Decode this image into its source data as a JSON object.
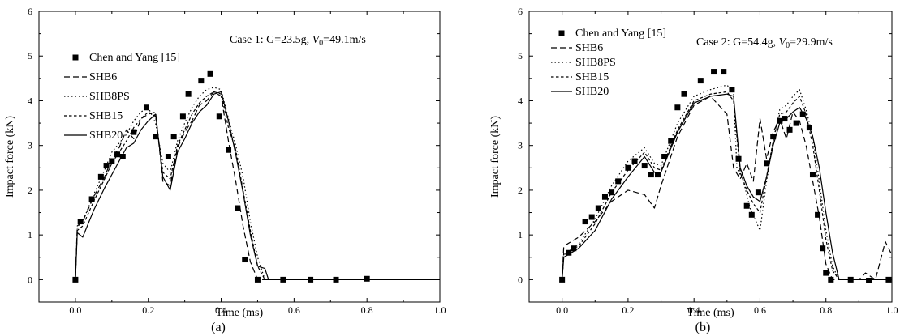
{
  "chart_data": [
    {
      "type": "line",
      "panel_label": "(a)",
      "case_label": {
        "prefix": "Case 1:  G=23.5g, ",
        "v_symbol": "V",
        "v_subscript": "0",
        "v_value": "=49.1m/s"
      },
      "xlabel": "Time (ms)",
      "ylabel": "Impact force (kN)",
      "xlim": [
        -0.1,
        1.0
      ],
      "ylim": [
        -0.5,
        6
      ],
      "xticks": [
        0.0,
        0.2,
        0.4,
        0.6,
        0.8,
        1.0
      ],
      "xtick_labels": [
        "0.0",
        "0.2",
        "0.4",
        "0.6",
        "0.8",
        "1.0"
      ],
      "yticks": [
        0,
        1,
        2,
        3,
        4,
        5,
        6
      ],
      "ytick_labels": [
        "0",
        "1",
        "2",
        "3",
        "4",
        "5",
        "6"
      ],
      "grid": false,
      "legend_position": "right",
      "series": [
        {
          "name": "Chen and Yang [15]",
          "style": "square-marker",
          "x": [
            0.0,
            0.014,
            0.045,
            0.07,
            0.085,
            0.1,
            0.115,
            0.13,
            0.16,
            0.195,
            0.22,
            0.255,
            0.27,
            0.295,
            0.31,
            0.345,
            0.37,
            0.395,
            0.42,
            0.445,
            0.465,
            0.5,
            0.57,
            0.645,
            0.715,
            0.8
          ],
          "y": [
            0.0,
            1.3,
            1.8,
            2.3,
            2.55,
            2.65,
            2.8,
            2.75,
            3.3,
            3.85,
            3.2,
            2.75,
            3.2,
            3.65,
            4.15,
            4.45,
            4.6,
            3.65,
            2.9,
            1.6,
            0.45,
            0.0,
            0.0,
            0.0,
            0.0,
            0.02
          ]
        },
        {
          "name": "SHB6",
          "style": "dash",
          "x": [
            0.0,
            0.005,
            0.02,
            0.05,
            0.08,
            0.1,
            0.12,
            0.14,
            0.16,
            0.18,
            0.2,
            0.22,
            0.24,
            0.26,
            0.28,
            0.3,
            0.32,
            0.34,
            0.36,
            0.38,
            0.4,
            0.42,
            0.44,
            0.46,
            0.48,
            0.5,
            0.55,
            1.0
          ],
          "y": [
            0.0,
            1.2,
            1.3,
            1.85,
            2.3,
            2.7,
            2.95,
            3.35,
            3.15,
            3.6,
            3.7,
            3.75,
            2.2,
            2.1,
            2.95,
            3.3,
            3.55,
            3.9,
            4.0,
            4.2,
            4.1,
            3.1,
            2.2,
            1.2,
            0.4,
            0.0,
            0.0,
            0.0
          ]
        },
        {
          "name": "SHB8PS",
          "style": "dot",
          "x": [
            0.0,
            0.005,
            0.02,
            0.05,
            0.08,
            0.1,
            0.12,
            0.14,
            0.16,
            0.18,
            0.2,
            0.22,
            0.24,
            0.26,
            0.28,
            0.3,
            0.32,
            0.34,
            0.36,
            0.38,
            0.4,
            0.42,
            0.44,
            0.46,
            0.48,
            0.5,
            0.52,
            0.55,
            1.0
          ],
          "y": [
            0.0,
            1.15,
            1.3,
            1.9,
            2.45,
            2.85,
            3.05,
            3.25,
            3.55,
            3.75,
            3.85,
            3.5,
            2.6,
            2.4,
            3.1,
            3.5,
            3.85,
            4.1,
            4.25,
            4.3,
            4.25,
            3.6,
            3.0,
            2.3,
            1.3,
            0.5,
            0.0,
            0.0,
            0.0
          ]
        },
        {
          "name": "SHB15",
          "style": "short-dash",
          "x": [
            0.0,
            0.005,
            0.02,
            0.05,
            0.08,
            0.1,
            0.12,
            0.14,
            0.16,
            0.18,
            0.2,
            0.22,
            0.24,
            0.26,
            0.28,
            0.3,
            0.32,
            0.34,
            0.36,
            0.38,
            0.4,
            0.42,
            0.44,
            0.46,
            0.48,
            0.5,
            0.52,
            0.55,
            1.0
          ],
          "y": [
            0.0,
            1.1,
            1.2,
            1.75,
            2.25,
            2.6,
            2.85,
            3.1,
            3.4,
            3.6,
            3.75,
            3.65,
            2.4,
            2.25,
            3.0,
            3.35,
            3.7,
            3.95,
            4.1,
            4.2,
            4.15,
            3.4,
            2.9,
            2.0,
            1.1,
            0.3,
            0.0,
            0.0,
            0.0
          ]
        },
        {
          "name": "SHB20",
          "style": "solid",
          "x": [
            0.0,
            0.005,
            0.02,
            0.05,
            0.08,
            0.1,
            0.12,
            0.14,
            0.16,
            0.18,
            0.2,
            0.22,
            0.24,
            0.26,
            0.28,
            0.3,
            0.32,
            0.34,
            0.36,
            0.38,
            0.4,
            0.42,
            0.44,
            0.46,
            0.48,
            0.5,
            0.52,
            0.53,
            1.0
          ],
          "y": [
            0.0,
            1.05,
            0.95,
            1.55,
            2.05,
            2.35,
            2.65,
            2.95,
            3.05,
            3.35,
            3.55,
            3.7,
            2.3,
            2.0,
            2.85,
            3.15,
            3.5,
            3.75,
            3.9,
            4.15,
            4.2,
            3.55,
            2.8,
            1.95,
            1.0,
            0.3,
            0.25,
            0.0,
            0.0
          ]
        }
      ]
    },
    {
      "type": "line",
      "panel_label": "(b)",
      "case_label": {
        "prefix": "Case 2:  G=54.4g, ",
        "v_symbol": "V",
        "v_subscript": "0",
        "v_value": "=29.9m/s"
      },
      "xlabel": "Time (ms)",
      "ylabel": "Impact force (kN)",
      "xlim": [
        -0.1,
        1.0
      ],
      "ylim": [
        -0.5,
        6
      ],
      "xticks": [
        0.0,
        0.2,
        0.4,
        0.6,
        0.8,
        1.0
      ],
      "xtick_labels": [
        "0.0",
        "0.2",
        "0.4",
        "0.6",
        "0.8",
        "1.0"
      ],
      "yticks": [
        0,
        1,
        2,
        3,
        4,
        5,
        6
      ],
      "ytick_labels": [
        "0",
        "1",
        "2",
        "3",
        "4",
        "5",
        "6"
      ],
      "grid": false,
      "legend_position": "top-left",
      "series": [
        {
          "name": "Chen and Yang [15]",
          "style": "square-marker",
          "x": [
            0.0,
            0.02,
            0.035,
            0.07,
            0.09,
            0.11,
            0.13,
            0.15,
            0.17,
            0.2,
            0.22,
            0.25,
            0.27,
            0.29,
            0.31,
            0.33,
            0.35,
            0.37,
            0.42,
            0.46,
            0.49,
            0.515,
            0.535,
            0.56,
            0.575,
            0.595,
            0.62,
            0.64,
            0.66,
            0.675,
            0.69,
            0.71,
            0.73,
            0.75,
            0.76,
            0.775,
            0.79,
            0.8,
            0.815,
            0.875,
            0.93,
            0.99
          ],
          "y": [
            0.0,
            0.6,
            0.7,
            1.3,
            1.4,
            1.6,
            1.85,
            1.95,
            2.2,
            2.5,
            2.65,
            2.55,
            2.35,
            2.35,
            2.75,
            3.1,
            3.85,
            4.15,
            4.45,
            4.65,
            4.65,
            4.25,
            2.7,
            1.65,
            1.45,
            1.95,
            2.6,
            3.2,
            3.55,
            3.6,
            3.35,
            3.5,
            3.7,
            3.4,
            2.35,
            1.45,
            0.7,
            0.15,
            0.0,
            0.0,
            -0.02,
            0.0
          ]
        },
        {
          "name": "SHB6",
          "style": "dash",
          "x": [
            0.0,
            0.005,
            0.05,
            0.1,
            0.15,
            0.2,
            0.25,
            0.28,
            0.3,
            0.35,
            0.4,
            0.45,
            0.5,
            0.52,
            0.54,
            0.56,
            0.58,
            0.6,
            0.62,
            0.64,
            0.66,
            0.68,
            0.7,
            0.72,
            0.74,
            0.76,
            0.78,
            0.8,
            0.82,
            0.84,
            0.88,
            0.9,
            0.92,
            0.95,
            0.98,
            1.0
          ],
          "y": [
            0.0,
            0.75,
            0.95,
            1.3,
            1.75,
            2.0,
            1.9,
            1.6,
            2.1,
            3.2,
            3.9,
            4.1,
            3.7,
            2.5,
            2.25,
            2.6,
            2.2,
            3.6,
            2.7,
            3.3,
            3.6,
            3.15,
            3.75,
            3.55,
            3.0,
            2.2,
            1.4,
            0.35,
            0.0,
            0.0,
            0.0,
            0.0,
            0.15,
            0.0,
            0.85,
            0.55
          ]
        },
        {
          "name": "SHB8PS",
          "style": "dot",
          "x": [
            0.0,
            0.005,
            0.05,
            0.1,
            0.15,
            0.2,
            0.25,
            0.28,
            0.3,
            0.35,
            0.4,
            0.45,
            0.5,
            0.52,
            0.53,
            0.55,
            0.57,
            0.6,
            0.62,
            0.64,
            0.66,
            0.68,
            0.7,
            0.72,
            0.74,
            0.76,
            0.78,
            0.8,
            0.82,
            0.84,
            1.0
          ],
          "y": [
            0.0,
            0.55,
            0.8,
            1.35,
            2.1,
            2.65,
            2.95,
            2.6,
            2.55,
            3.5,
            4.1,
            4.25,
            4.35,
            4.2,
            2.5,
            2.2,
            1.6,
            1.1,
            2.2,
            3.1,
            3.8,
            3.9,
            4.1,
            4.25,
            3.8,
            3.2,
            2.2,
            1.1,
            0.3,
            0.0,
            0.0
          ]
        },
        {
          "name": "SHB15",
          "style": "short-dash",
          "x": [
            0.0,
            0.005,
            0.05,
            0.1,
            0.15,
            0.2,
            0.25,
            0.28,
            0.3,
            0.35,
            0.4,
            0.45,
            0.5,
            0.52,
            0.54,
            0.56,
            0.58,
            0.6,
            0.62,
            0.64,
            0.66,
            0.68,
            0.7,
            0.72,
            0.74,
            0.76,
            0.78,
            0.8,
            0.82,
            0.84,
            1.0
          ],
          "y": [
            0.0,
            0.6,
            0.75,
            1.25,
            1.95,
            2.45,
            2.85,
            2.5,
            2.45,
            3.35,
            4.0,
            4.15,
            4.2,
            4.0,
            2.4,
            2.0,
            1.7,
            1.5,
            2.3,
            3.1,
            3.7,
            3.75,
            3.95,
            4.1,
            3.7,
            3.0,
            2.0,
            0.9,
            0.2,
            0.0,
            0.0
          ]
        },
        {
          "name": "SHB20",
          "style": "solid",
          "x": [
            0.0,
            0.005,
            0.05,
            0.1,
            0.15,
            0.2,
            0.25,
            0.28,
            0.3,
            0.35,
            0.4,
            0.45,
            0.5,
            0.52,
            0.54,
            0.56,
            0.58,
            0.6,
            0.62,
            0.64,
            0.66,
            0.68,
            0.7,
            0.72,
            0.74,
            0.76,
            0.78,
            0.8,
            0.82,
            0.84,
            1.0
          ],
          "y": [
            0.0,
            0.5,
            0.7,
            1.1,
            1.8,
            2.3,
            2.75,
            2.4,
            2.4,
            3.3,
            3.95,
            4.1,
            4.15,
            4.1,
            2.5,
            2.1,
            1.85,
            1.75,
            2.3,
            3.0,
            3.5,
            3.6,
            3.75,
            3.85,
            3.6,
            3.2,
            2.5,
            1.5,
            0.6,
            0.0,
            0.0
          ]
        }
      ]
    }
  ]
}
